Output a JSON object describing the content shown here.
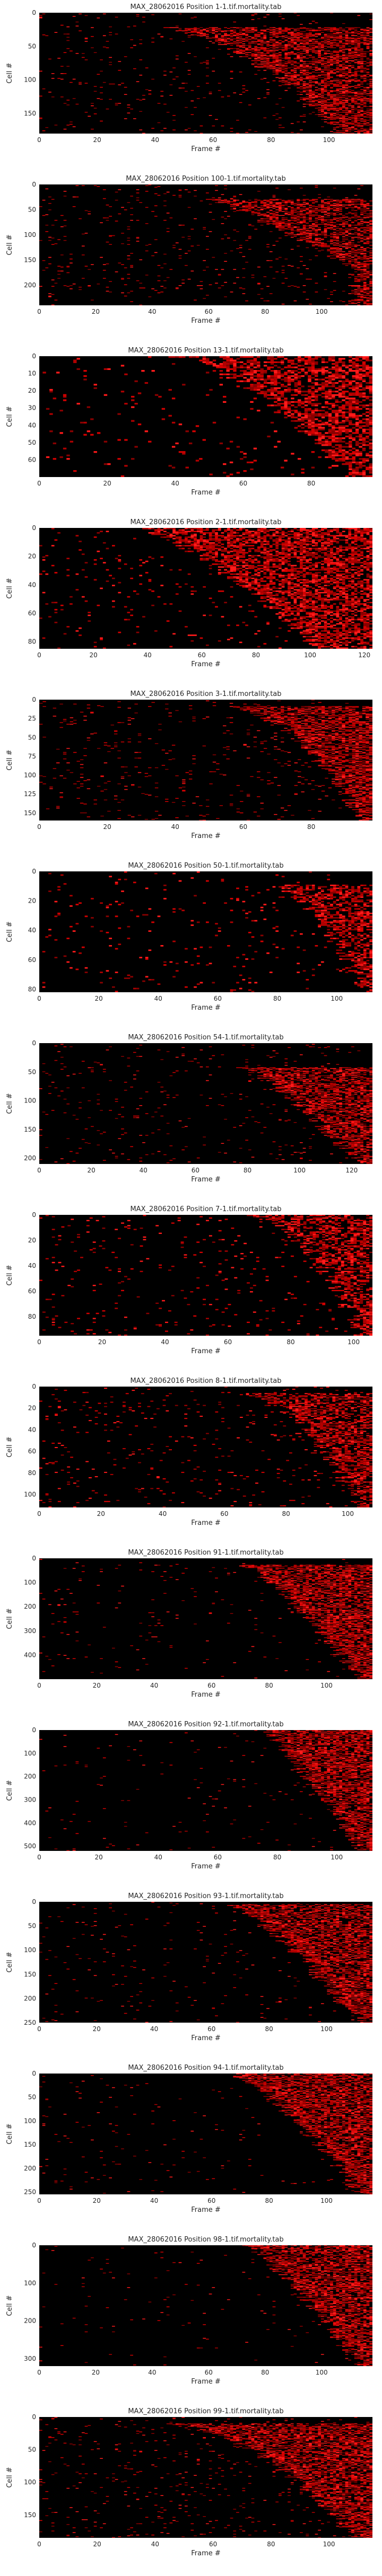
{
  "chart_data": [
    {
      "type": "heatmap",
      "title": "MAX_28062016 Position 1-1.tif.mortality.tab",
      "xlabel": "Frame #",
      "ylabel": "Cell #",
      "xlim": [
        0,
        115
      ],
      "ylim": [
        180,
        0
      ],
      "xticks": [
        0,
        20,
        40,
        60,
        80,
        100
      ],
      "yticks": [
        0,
        50,
        100,
        150
      ],
      "grid": false,
      "colormap": "black-red",
      "front": {
        "start_row": 0.12,
        "end_row": 0.98,
        "start_frame": 0.35,
        "end_frame": 0.9,
        "curve": 0.55,
        "density": 0.55,
        "background": 0.025
      }
    },
    {
      "type": "heatmap",
      "title": "MAX_28062016 Position 100-1.tif.mortality.tab",
      "xlabel": "Frame #",
      "ylabel": "Cell #",
      "xlim": [
        0,
        118
      ],
      "ylim": [
        240,
        0
      ],
      "xticks": [
        0,
        20,
        40,
        60,
        80,
        100
      ],
      "yticks": [
        0,
        50,
        100,
        150,
        200
      ],
      "grid": false,
      "colormap": "black-red",
      "front": {
        "start_row": 0.12,
        "end_row": 0.7,
        "start_frame": 0.5,
        "end_frame": 0.95,
        "curve": 0.8,
        "density": 0.5,
        "background": 0.03
      }
    },
    {
      "type": "heatmap",
      "title": "MAX_28062016 Position 13-1.tif.mortality.tab",
      "xlabel": "Frame #",
      "ylabel": "Cell #",
      "xlim": [
        0,
        98
      ],
      "ylim": [
        70,
        0
      ],
      "xticks": [
        0,
        20,
        40,
        60,
        80
      ],
      "yticks": [
        0,
        10,
        20,
        30,
        40,
        50,
        60
      ],
      "grid": false,
      "colormap": "black-red",
      "front": {
        "start_row": 0.0,
        "end_row": 1.0,
        "start_frame": 0.4,
        "end_frame": 0.93,
        "curve": 0.6,
        "density": 0.6,
        "background": 0.03
      }
    },
    {
      "type": "heatmap",
      "title": "MAX_28062016 Position 2-1.tif.mortality.tab",
      "xlabel": "Frame #",
      "ylabel": "Cell #",
      "xlim": [
        0,
        123
      ],
      "ylim": [
        85,
        0
      ],
      "xticks": [
        0,
        20,
        40,
        60,
        80,
        100,
        120
      ],
      "yticks": [
        0,
        20,
        40,
        60,
        80
      ],
      "grid": false,
      "colormap": "black-red",
      "front": {
        "start_row": 0.0,
        "end_row": 1.0,
        "start_frame": 0.3,
        "end_frame": 0.85,
        "curve": 0.75,
        "density": 0.62,
        "background": 0.03
      }
    },
    {
      "type": "heatmap",
      "title": "MAX_28062016 Position 3-1.tif.mortality.tab",
      "xlabel": "Frame #",
      "ylabel": "Cell #",
      "xlim": [
        0,
        98
      ],
      "ylim": [
        160,
        0
      ],
      "xticks": [
        0,
        20,
        40,
        60,
        80
      ],
      "yticks": [
        0,
        25,
        50,
        75,
        100,
        125,
        150
      ],
      "grid": false,
      "colormap": "black-red",
      "front": {
        "start_row": 0.05,
        "end_row": 1.0,
        "start_frame": 0.55,
        "end_frame": 0.97,
        "curve": 0.5,
        "density": 0.6,
        "background": 0.03
      }
    },
    {
      "type": "heatmap",
      "title": "MAX_28062016 Position 50-1.tif.mortality.tab",
      "xlabel": "Frame #",
      "ylabel": "Cell #",
      "xlim": [
        0,
        112
      ],
      "ylim": [
        82,
        0
      ],
      "xticks": [
        0,
        20,
        40,
        60,
        80,
        100
      ],
      "yticks": [
        0,
        20,
        40,
        60,
        80
      ],
      "grid": false,
      "colormap": "black-red",
      "front": {
        "start_row": 0.1,
        "end_row": 1.0,
        "start_frame": 0.7,
        "end_frame": 0.97,
        "curve": 0.6,
        "density": 0.55,
        "background": 0.025
      }
    },
    {
      "type": "heatmap",
      "title": "MAX_28062016 Position 54-1.tif.mortality.tab",
      "xlabel": "Frame #",
      "ylabel": "Cell #",
      "xlim": [
        0,
        128
      ],
      "ylim": [
        210,
        0
      ],
      "xticks": [
        0,
        20,
        40,
        60,
        80,
        100,
        120
      ],
      "yticks": [
        0,
        50,
        100,
        150,
        200
      ],
      "grid": false,
      "colormap": "black-red",
      "front": {
        "start_row": 0.2,
        "end_row": 0.98,
        "start_frame": 0.6,
        "end_frame": 0.95,
        "curve": 0.7,
        "density": 0.58,
        "background": 0.02
      }
    },
    {
      "type": "heatmap",
      "title": "MAX_28062016 Position 7-1.tif.mortality.tab",
      "xlabel": "Frame #",
      "ylabel": "Cell #",
      "xlim": [
        0,
        106
      ],
      "ylim": [
        95,
        0
      ],
      "xticks": [
        0,
        20,
        40,
        60,
        80,
        100
      ],
      "yticks": [
        0,
        20,
        40,
        60,
        80
      ],
      "grid": false,
      "colormap": "black-red",
      "front": {
        "start_row": 0.0,
        "end_row": 1.0,
        "start_frame": 0.62,
        "end_frame": 0.97,
        "curve": 0.5,
        "density": 0.55,
        "background": 0.035
      }
    },
    {
      "type": "heatmap",
      "title": "MAX_28062016 Position 8-1.tif.mortality.tab",
      "xlabel": "Frame #",
      "ylabel": "Cell #",
      "xlim": [
        0,
        108
      ],
      "ylim": [
        112,
        0
      ],
      "xticks": [
        0,
        20,
        40,
        60,
        80,
        100
      ],
      "yticks": [
        0,
        20,
        40,
        60,
        80,
        100
      ],
      "grid": false,
      "colormap": "black-red",
      "front": {
        "start_row": 0.05,
        "end_row": 1.0,
        "start_frame": 0.58,
        "end_frame": 0.97,
        "curve": 0.5,
        "density": 0.55,
        "background": 0.035
      }
    },
    {
      "type": "heatmap",
      "title": "MAX_28062016 Position 91-1.tif.mortality.tab",
      "xlabel": "Frame #",
      "ylabel": "Cell #",
      "xlim": [
        0,
        116
      ],
      "ylim": [
        500,
        0
      ],
      "xticks": [
        0,
        20,
        40,
        60,
        80,
        100
      ],
      "yticks": [
        0,
        100,
        200,
        300,
        400
      ],
      "grid": false,
      "colormap": "black-red",
      "front": {
        "start_row": 0.05,
        "end_row": 1.0,
        "start_frame": 0.62,
        "end_frame": 0.97,
        "curve": 0.8,
        "density": 0.6,
        "background": 0.012
      }
    },
    {
      "type": "heatmap",
      "title": "MAX_28062016 Position 92-1.tif.mortality.tab",
      "xlabel": "Frame #",
      "ylabel": "Cell #",
      "xlim": [
        0,
        112
      ],
      "ylim": [
        520,
        0
      ],
      "xticks": [
        0,
        20,
        40,
        60,
        80,
        100
      ],
      "yticks": [
        0,
        100,
        200,
        300,
        400,
        500
      ],
      "grid": false,
      "colormap": "black-red",
      "front": {
        "start_row": 0.0,
        "end_row": 1.0,
        "start_frame": 0.68,
        "end_frame": 0.97,
        "curve": 0.85,
        "density": 0.62,
        "background": 0.01
      }
    },
    {
      "type": "heatmap",
      "title": "MAX_28062016 Position 93-1.tif.mortality.tab",
      "xlabel": "Frame #",
      "ylabel": "Cell #",
      "xlim": [
        0,
        116
      ],
      "ylim": [
        250,
        0
      ],
      "xticks": [
        0,
        20,
        40,
        60,
        80,
        100
      ],
      "yticks": [
        0,
        50,
        100,
        150,
        200,
        250
      ],
      "grid": false,
      "colormap": "black-red",
      "front": {
        "start_row": 0.02,
        "end_row": 1.0,
        "start_frame": 0.58,
        "end_frame": 0.97,
        "curve": 0.8,
        "density": 0.62,
        "background": 0.015
      }
    },
    {
      "type": "heatmap",
      "title": "MAX_28062016 Position 94-1.tif.mortality.tab",
      "xlabel": "Frame #",
      "ylabel": "Cell #",
      "xlim": [
        0,
        116
      ],
      "ylim": [
        255,
        0
      ],
      "xticks": [
        0,
        20,
        40,
        60,
        80,
        100
      ],
      "yticks": [
        0,
        50,
        100,
        150,
        200,
        250
      ],
      "grid": false,
      "colormap": "black-red",
      "front": {
        "start_row": 0.0,
        "end_row": 1.0,
        "start_frame": 0.58,
        "end_frame": 0.97,
        "curve": 0.75,
        "density": 0.62,
        "background": 0.012
      }
    },
    {
      "type": "heatmap",
      "title": "MAX_28062016 Position 98-1.tif.mortality.tab",
      "xlabel": "Frame #",
      "ylabel": "Cell #",
      "xlim": [
        0,
        118
      ],
      "ylim": [
        320,
        0
      ],
      "xticks": [
        0,
        20,
        40,
        60,
        80,
        100
      ],
      "yticks": [
        0,
        100,
        200,
        300
      ],
      "grid": false,
      "colormap": "black-red",
      "front": {
        "start_row": 0.0,
        "end_row": 1.0,
        "start_frame": 0.62,
        "end_frame": 0.97,
        "curve": 0.8,
        "density": 0.6,
        "background": 0.008
      }
    },
    {
      "type": "heatmap",
      "title": "MAX_28062016 Position 99-1.tif.mortality.tab",
      "xlabel": "Frame #",
      "ylabel": "Cell #",
      "xlim": [
        0,
        115
      ],
      "ylim": [
        185,
        0
      ],
      "xticks": [
        0,
        20,
        40,
        60,
        80,
        100
      ],
      "yticks": [
        0,
        50,
        100,
        150
      ],
      "grid": false,
      "colormap": "black-red",
      "front": {
        "start_row": 0.05,
        "end_row": 1.0,
        "start_frame": 0.35,
        "end_frame": 0.95,
        "curve": 0.5,
        "density": 0.6,
        "background": 0.03
      }
    }
  ]
}
